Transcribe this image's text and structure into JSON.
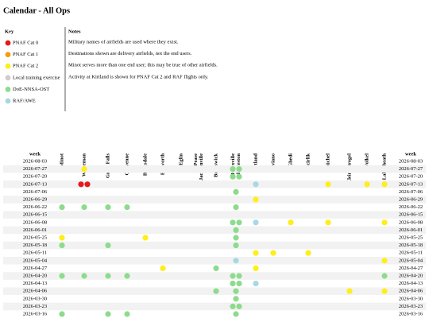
{
  "title": "Calendar - All Ops",
  "key": {
    "heading": "Key",
    "items": [
      {
        "label": "PNAF Cat 0",
        "color": "#e41a1c"
      },
      {
        "label": "PNAF Cat 1",
        "color": "#f39c12"
      },
      {
        "label": "PNAF Cat 2",
        "color": "#ffee1a"
      },
      {
        "label": "Local training exercise",
        "color": "#d3c9cf"
      },
      {
        "label": "DoE-NNSA-OST",
        "color": "#8ddb8d"
      },
      {
        "label": "RAF/AWE",
        "color": "#a8d8e0"
      }
    ]
  },
  "notes": {
    "heading": "Notes",
    "lines": [
      "Military names of airfields are used where they exist.",
      "Destinations shown are delivery airfields, not the end users.",
      "Minot serves more than one end user; this may be true of other airfields.",
      "Activity at Kirtland is shown for PNAF Cat 2 and RAF flights only."
    ]
  },
  "table": {
    "week_header": "week",
    "columns": [
      [
        "Minot"
      ],
      [
        "Whiteman"
      ],
      [
        "Great Falls"
      ],
      [
        "Cheyenne"
      ],
      [
        "Barksdale"
      ],
      [
        "Ellsworth"
      ],
      [
        "Eglin"
      ],
      [
        "Pease",
        "Jacksonville"
      ],
      [
        "Brunswick"
      ],
      [
        "Knoxville",
        "Charleston"
      ],
      [
        "Kirtland"
      ],
      [
        "Aviano"
      ],
      [
        "Ghedi"
      ],
      [
        "Incirlik"
      ],
      [
        "Büchel"
      ],
      [
        "Kleine Brogel"
      ],
      [
        "Volkel"
      ],
      [
        "Lakenheath"
      ]
    ],
    "rows": [
      {
        "week": "2026-08-03",
        "cells": [
          [],
          [],
          [],
          [],
          [],
          [],
          [],
          [],
          [],
          [],
          [],
          [],
          [],
          [],
          [],
          [],
          [],
          []
        ]
      },
      {
        "week": "2026-07-27",
        "cells": [
          [],
          [
            2
          ],
          [],
          [],
          [],
          [],
          [],
          [],
          [],
          [
            4,
            4
          ],
          [],
          [],
          [],
          [],
          [],
          [],
          [],
          []
        ]
      },
      {
        "week": "2026-07-20",
        "cells": [
          [],
          [],
          [],
          [],
          [],
          [],
          [],
          [],
          [],
          [
            4,
            4
          ],
          [],
          [],
          [],
          [],
          [],
          [],
          [],
          []
        ]
      },
      {
        "week": "2026-07-13",
        "cells": [
          [],
          [
            0,
            0
          ],
          [],
          [],
          [],
          [],
          [],
          [],
          [],
          [],
          [
            5
          ],
          [],
          [],
          [],
          [
            2
          ],
          [],
          [
            2
          ],
          [
            2
          ]
        ]
      },
      {
        "week": "2026-07-06",
        "cells": [
          [],
          [],
          [],
          [],
          [],
          [],
          [],
          [],
          [],
          [
            4
          ],
          [],
          [],
          [],
          [],
          [],
          [],
          [],
          []
        ]
      },
      {
        "week": "2026-06-29",
        "cells": [
          [],
          [],
          [],
          [],
          [],
          [],
          [],
          [],
          [],
          [],
          [
            2
          ],
          [],
          [],
          [],
          [],
          [],
          [],
          []
        ]
      },
      {
        "week": "2026-06-22",
        "cells": [
          [
            4
          ],
          [
            4
          ],
          [
            4
          ],
          [
            4
          ],
          [],
          [],
          [],
          [],
          [],
          [
            4
          ],
          [],
          [],
          [],
          [],
          [],
          [],
          [],
          []
        ]
      },
      {
        "week": "2026-06-15",
        "cells": [
          [],
          [],
          [],
          [],
          [],
          [],
          [],
          [],
          [],
          [],
          [],
          [],
          [],
          [],
          [],
          [],
          [],
          []
        ]
      },
      {
        "week": "2026-06-08",
        "cells": [
          [],
          [],
          [],
          [],
          [],
          [],
          [],
          [],
          [],
          [
            4,
            4
          ],
          [
            5
          ],
          [],
          [
            2
          ],
          [],
          [
            2
          ],
          [],
          [],
          [
            2
          ]
        ]
      },
      {
        "week": "2026-06-01",
        "cells": [
          [],
          [],
          [],
          [],
          [],
          [],
          [],
          [],
          [],
          [
            4
          ],
          [],
          [],
          [],
          [],
          [],
          [],
          [],
          []
        ]
      },
      {
        "week": "2026-05-25",
        "cells": [
          [
            2
          ],
          [],
          [],
          [],
          [
            2
          ],
          [],
          [],
          [],
          [],
          [
            4
          ],
          [],
          [],
          [],
          [],
          [],
          [],
          [],
          []
        ]
      },
      {
        "week": "2026-05-18",
        "cells": [
          [
            4
          ],
          [],
          [
            4
          ],
          [],
          [],
          [],
          [],
          [],
          [],
          [
            4
          ],
          [],
          [],
          [],
          [],
          [],
          [],
          [],
          []
        ]
      },
      {
        "week": "2026-05-11",
        "cells": [
          [],
          [],
          [],
          [],
          [],
          [],
          [],
          [],
          [],
          [],
          [
            2
          ],
          [
            2
          ],
          [],
          [
            2
          ],
          [],
          [],
          [],
          []
        ]
      },
      {
        "week": "2026-05-04",
        "cells": [
          [],
          [],
          [],
          [],
          [],
          [],
          [],
          [],
          [],
          [
            5
          ],
          [],
          [],
          [],
          [],
          [],
          [],
          [],
          [
            2
          ]
        ]
      },
      {
        "week": "2026-04-27",
        "cells": [
          [],
          [],
          [],
          [],
          [],
          [
            2
          ],
          [],
          [],
          [
            4
          ],
          [],
          [
            2
          ],
          [],
          [],
          [],
          [],
          [],
          [],
          []
        ]
      },
      {
        "week": "2026-04-20",
        "cells": [
          [
            4
          ],
          [
            4
          ],
          [
            4
          ],
          [
            4
          ],
          [],
          [],
          [],
          [],
          [],
          [
            4,
            4
          ],
          [],
          [],
          [],
          [],
          [],
          [],
          [],
          [
            4
          ]
        ]
      },
      {
        "week": "2026-04-13",
        "cells": [
          [],
          [],
          [],
          [],
          [],
          [],
          [],
          [],
          [],
          [
            4,
            4
          ],
          [
            5
          ],
          [],
          [],
          [],
          [],
          [],
          [],
          []
        ]
      },
      {
        "week": "2026-04-06",
        "cells": [
          [],
          [],
          [],
          [],
          [],
          [],
          [],
          [],
          [
            4
          ],
          [
            4
          ],
          [],
          [],
          [],
          [],
          [],
          [
            2
          ],
          [],
          [
            2
          ]
        ]
      },
      {
        "week": "2026-03-30",
        "cells": [
          [],
          [],
          [],
          [],
          [],
          [],
          [],
          [],
          [],
          [
            4
          ],
          [],
          [],
          [],
          [],
          [],
          [],
          [],
          []
        ]
      },
      {
        "week": "2026-03-23",
        "cells": [
          [],
          [],
          [],
          [],
          [],
          [],
          [],
          [],
          [],
          [
            4,
            4
          ],
          [],
          [],
          [],
          [],
          [],
          [],
          [],
          []
        ]
      },
      {
        "week": "2026-03-16",
        "cells": [
          [
            4
          ],
          [],
          [
            4
          ],
          [
            4
          ],
          [],
          [],
          [],
          [],
          [],
          [
            4
          ],
          [],
          [],
          [],
          [],
          [],
          [],
          [],
          []
        ]
      }
    ]
  }
}
